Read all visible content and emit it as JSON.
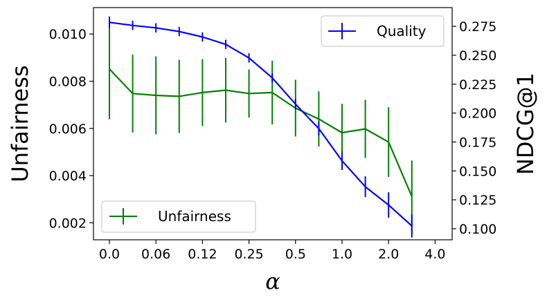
{
  "chart_data": {
    "type": "line",
    "xlabel": "α",
    "ylabel_left": "Unfairness",
    "ylabel_right": "NDCG@1",
    "x_tick_labels": [
      "0.0",
      "0.06",
      "0.12",
      "0.25",
      "0.5",
      "1.0",
      "2.0",
      "4.0"
    ],
    "y_left_ticks": [
      "0.002",
      "0.004",
      "0.006",
      "0.008",
      "0.010"
    ],
    "y_left_lim": [
      0.00128,
      0.01112
    ],
    "y_right_ticks": [
      "0.100",
      "0.125",
      "0.150",
      "0.175",
      "0.200",
      "0.225",
      "0.250",
      "0.275"
    ],
    "y_right_lim": [
      0.0904,
      0.2912
    ],
    "grid": false,
    "series": [
      {
        "name": "Quality",
        "axis": "right",
        "color": "#0000ff",
        "values": [
          0.2785,
          0.2758,
          0.2737,
          0.2705,
          0.2658,
          0.2594,
          0.2477,
          0.2305,
          0.2077,
          0.1866,
          0.1587,
          0.1363,
          0.1205,
          0.1024
        ],
        "errors": [
          0.005,
          0.004,
          0.004,
          0.004,
          0.004,
          0.004,
          0.004,
          0.004,
          0.0045,
          0.006,
          0.008,
          0.009,
          0.011,
          0.01
        ]
      },
      {
        "name": "Unfairness",
        "axis": "left",
        "color": "#008000",
        "values": [
          0.00852,
          0.00748,
          0.0074,
          0.00736,
          0.00752,
          0.00762,
          0.00748,
          0.00752,
          0.00686,
          0.0064,
          0.00582,
          0.00598,
          0.00542,
          0.00312
        ],
        "errors": [
          0.00213,
          0.00165,
          0.00165,
          0.00155,
          0.00142,
          0.00137,
          0.00102,
          0.00135,
          0.0012,
          0.00117,
          0.00122,
          0.00123,
          0.00148,
          0.00152
        ]
      }
    ],
    "legends": [
      {
        "series": "Quality",
        "placement": "upper right"
      },
      {
        "series": "Unfairness",
        "placement": "lower left"
      }
    ]
  }
}
